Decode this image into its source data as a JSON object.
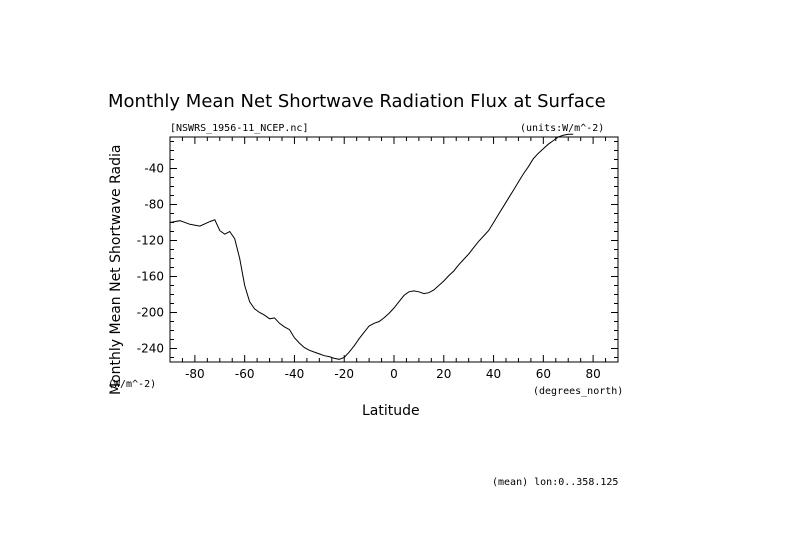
{
  "chart_data": {
    "type": "line",
    "title": "Monthly Mean Net Shortwave Radiation Flux at Surface",
    "file_label": "[NSWRS_1956-11_NCEP.nc]",
    "units_label": "(units:W/m^-2)",
    "ylabel": "Monthly Mean Net Shortwave Radia",
    "ylabel_units": "(W/m^-2)",
    "xlabel": "Latitude",
    "xunits": "(degrees_north)",
    "footnote": "(mean) lon:0..358.125",
    "xlim": [
      -90,
      90
    ],
    "ylim": [
      -255,
      -5
    ],
    "xticks": [
      -80,
      -60,
      -40,
      -20,
      0,
      20,
      40,
      60,
      80
    ],
    "xtick_labels": [
      "-80",
      "-60",
      "-40",
      "-20",
      "0",
      "20",
      "40",
      "60",
      "80"
    ],
    "yticks": [
      -40,
      -80,
      -120,
      -160,
      -200,
      -240
    ],
    "ytick_labels": [
      "-40",
      "-80",
      "-120",
      "-160",
      "-200",
      "-240"
    ],
    "grid": false,
    "series": [
      {
        "x": [
          -90,
          -86,
          -82,
          -78,
          -74,
          -72,
          -70,
          -68,
          -66,
          -64,
          -62,
          -60,
          -58,
          -56,
          -54,
          -52,
          -50,
          -48,
          -46,
          -44,
          -42,
          -40,
          -38,
          -36,
          -34,
          -32,
          -30,
          -28,
          -26,
          -24,
          -22,
          -20,
          -18,
          -16,
          -14,
          -12,
          -10,
          -8,
          -6,
          -4,
          -2,
          0,
          2,
          4,
          6,
          8,
          10,
          12,
          14,
          16,
          18,
          20,
          22,
          24,
          26,
          28,
          30,
          32,
          34,
          36,
          38,
          40,
          42,
          44,
          46,
          48,
          50,
          52,
          54,
          56,
          58,
          60,
          62,
          64,
          66,
          68,
          70,
          72
        ],
        "y": [
          -100,
          -98,
          -102,
          -104,
          -99,
          -97,
          -109,
          -113,
          -110,
          -118,
          -140,
          -170,
          -188,
          -196,
          -200,
          -203,
          -207,
          -206,
          -212,
          -216,
          -219,
          -228,
          -234,
          -239,
          -242,
          -244,
          -246,
          -248,
          -249,
          -251,
          -252,
          -250,
          -244,
          -237,
          -229,
          -222,
          -215,
          -212,
          -210,
          -206,
          -201,
          -195,
          -188,
          -181,
          -177,
          -176,
          -177,
          -179,
          -178,
          -175,
          -170,
          -165,
          -159,
          -154,
          -147,
          -141,
          -135,
          -128,
          -121,
          -115,
          -109,
          -100,
          -91,
          -82,
          -73,
          -64,
          -55,
          -46,
          -38,
          -29,
          -23,
          -18,
          -13,
          -9,
          -5,
          -3,
          -2,
          -2
        ]
      }
    ]
  }
}
